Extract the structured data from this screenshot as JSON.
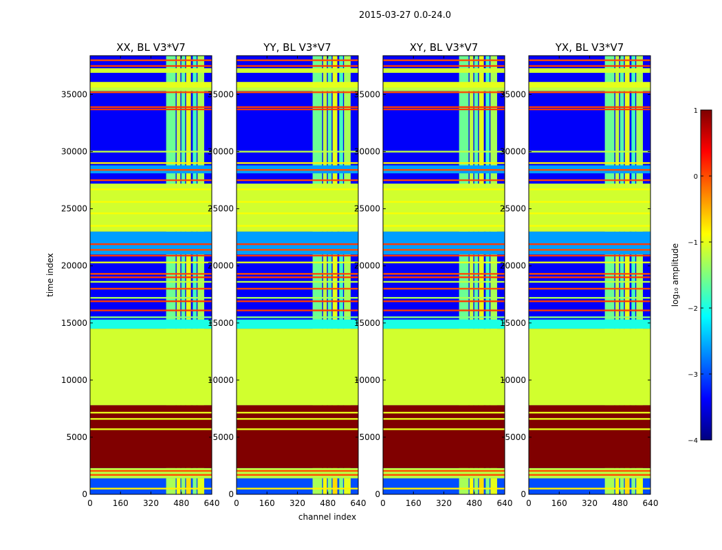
{
  "chart_data": {
    "type": "heatmap",
    "suptitle": "2015-03-27 0.0-24.0",
    "xlabel": "channel index",
    "ylabel": "time index",
    "colorbar_label": "log₁₀ amplitude",
    "panels": [
      {
        "title": "XX, BL V3*V7"
      },
      {
        "title": "YY, BL V3*V7"
      },
      {
        "title": "XY, BL V3*V7"
      },
      {
        "title": "YX, BL V3*V7"
      }
    ],
    "xlim": [
      0,
      640
    ],
    "ylim": [
      0,
      38400
    ],
    "xticks": [
      0,
      160,
      320,
      480,
      640
    ],
    "xtick_labels": [
      "0",
      "160",
      "320",
      "480",
      "640"
    ],
    "yticks": [
      0,
      5000,
      10000,
      15000,
      20000,
      25000,
      30000,
      35000
    ],
    "ytick_labels": [
      "0",
      "5000",
      "10000",
      "15000",
      "20000",
      "25000",
      "30000",
      "35000"
    ],
    "colorbar": {
      "range": [
        -4,
        1
      ],
      "ticks": [
        1,
        0,
        -1,
        -2,
        -3,
        -4
      ],
      "tick_labels": [
        "1",
        "0",
        "−1",
        "−2",
        "−3",
        "−4"
      ]
    },
    "structure": {
      "background_value": -3.4,
      "bands": [
        {
          "t0": 0,
          "t1": 1400,
          "value": -3.0
        },
        {
          "t0": 1400,
          "t1": 2300,
          "value": -1.2
        },
        {
          "t0": 2300,
          "t1": 7800,
          "value": 1.0
        },
        {
          "t0": 7800,
          "t1": 14500,
          "value": -1.1
        },
        {
          "t0": 14500,
          "t1": 15300,
          "value": -2.0
        },
        {
          "t0": 21000,
          "t1": 23000,
          "value": -2.6
        },
        {
          "t0": 23000,
          "t1": 27200,
          "value": -1.1
        },
        {
          "t0": 28100,
          "t1": 28800,
          "value": -2.6
        },
        {
          "t0": 35300,
          "t1": 35600,
          "value": -1.2
        },
        {
          "t0": 35600,
          "t1": 36100,
          "value": -1.0
        },
        {
          "t0": 36900,
          "t1": 37300,
          "value": -1.1
        }
      ],
      "lines": [
        {
          "t": 500,
          "value": -0.8
        },
        {
          "t": 1700,
          "value": 0.0
        },
        {
          "t": 2050,
          "value": 0.0
        },
        {
          "t": 5700,
          "value": -1.0
        },
        {
          "t": 6600,
          "value": -1.0
        },
        {
          "t": 7150,
          "value": -1.0
        },
        {
          "t": 15500,
          "value": -1.5
        },
        {
          "t": 16100,
          "value": 0.1
        },
        {
          "t": 16900,
          "value": 0.1
        },
        {
          "t": 17200,
          "value": -1.3
        },
        {
          "t": 18000,
          "value": 0.0
        },
        {
          "t": 18600,
          "value": -1.2
        },
        {
          "t": 19000,
          "value": 0.1
        },
        {
          "t": 19300,
          "value": 0.0
        },
        {
          "t": 20300,
          "value": -1.0
        },
        {
          "t": 20900,
          "value": 0.1
        },
        {
          "t": 21400,
          "value": 0.0
        },
        {
          "t": 21900,
          "value": 0.1
        },
        {
          "t": 23500,
          "value": -0.9
        },
        {
          "t": 24600,
          "value": -0.9
        },
        {
          "t": 25600,
          "value": -0.9
        },
        {
          "t": 26700,
          "value": -0.9
        },
        {
          "t": 27500,
          "value": 0.0
        },
        {
          "t": 28400,
          "value": 0.0
        },
        {
          "t": 29000,
          "value": -0.8
        },
        {
          "t": 30000,
          "value": -1.2
        },
        {
          "t": 33700,
          "value": 0.1
        },
        {
          "t": 33900,
          "value": 0.1
        },
        {
          "t": 35200,
          "value": 0.0
        },
        {
          "t": 37500,
          "value": 0.1
        },
        {
          "t": 38000,
          "value": 0.0
        }
      ],
      "channel_stripes": [
        {
          "c0": 400,
          "c1": 450,
          "value": -1.6
        },
        {
          "c0": 455,
          "c1": 475,
          "value": -1.2
        },
        {
          "c0": 480,
          "c1": 500,
          "value": -1.7
        },
        {
          "c0": 505,
          "c1": 530,
          "value": -1.0
        },
        {
          "c0": 540,
          "c1": 560,
          "value": -1.8
        },
        {
          "c0": 565,
          "c1": 600,
          "value": -1.3
        }
      ]
    }
  }
}
